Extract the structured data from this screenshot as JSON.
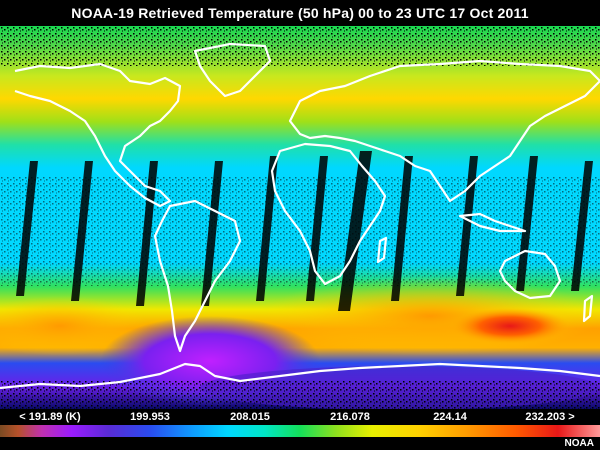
{
  "title": "NOAA-19 Retrieved Temperature (50 hPa)  00 to 23 UTC  17 Oct 2011",
  "legend": {
    "ticks": [
      {
        "label": "< 191.89 (K)",
        "value": 191.89
      },
      {
        "label": "199.953",
        "value": 199.953
      },
      {
        "label": "208.015",
        "value": 208.015
      },
      {
        "label": "216.078",
        "value": 216.078
      },
      {
        "label": "224.14",
        "value": 224.14
      },
      {
        "label": "232.203 >",
        "value": 232.203
      }
    ],
    "range": [
      187.86,
      236.23
    ]
  },
  "credit": "NOAA",
  "colors": {
    "coldest": "#9a1bff",
    "cold": "#00d8ff",
    "mid": "#14e05a",
    "warm": "#ffd000",
    "warmest": "#e81818",
    "coastline": "#ffffff",
    "swath_gap": "#000000"
  }
}
